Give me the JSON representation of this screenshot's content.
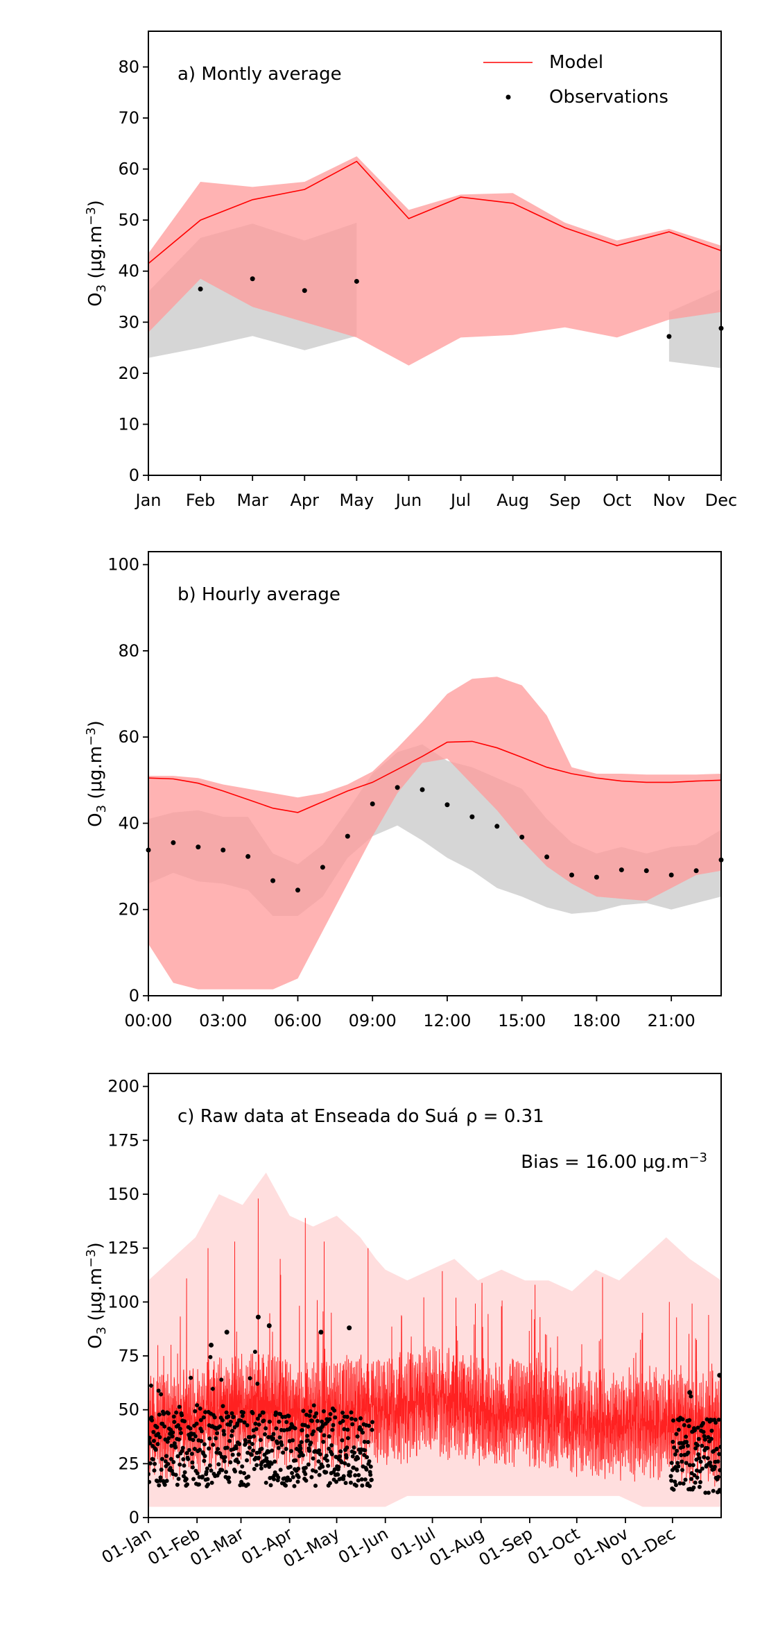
{
  "chart_data": [
    {
      "type": "line",
      "annotation": "a) Montly average",
      "ylabel": "O3 (μg.m−3)",
      "ylim": [
        0,
        87
      ],
      "yticks": [
        0,
        10,
        20,
        30,
        40,
        50,
        60,
        70,
        80
      ],
      "categories": [
        "Jan",
        "Feb",
        "Mar",
        "Apr",
        "May",
        "Jun",
        "Jul",
        "Aug",
        "Sep",
        "Oct",
        "Nov",
        "Dec"
      ],
      "legend": {
        "placement": "upper-right",
        "model_label": "Model",
        "obs_label": "Observations"
      },
      "series": [
        {
          "name": "Model",
          "values": [
            41.5,
            50,
            54,
            56,
            61.5,
            50.3,
            54.5,
            53.3,
            48.5,
            45,
            47.7,
            44
          ]
        },
        {
          "name": "Observations",
          "values": [
            null,
            36.5,
            38.5,
            36.2,
            38,
            null,
            null,
            null,
            null,
            null,
            27.2,
            28.8
          ]
        }
      ],
      "model_band": {
        "upper": [
          43.5,
          57.5,
          56.5,
          57.5,
          62.5,
          52,
          55,
          55.3,
          49.5,
          46,
          48.3,
          45
        ],
        "lower": [
          28,
          38.5,
          33,
          30,
          27,
          21.5,
          27,
          27.5,
          29,
          27,
          30.5,
          32
        ]
      },
      "obs_band": [
        {
          "months": [
            "Jan",
            "Feb",
            "Mar",
            "Apr",
            "May"
          ],
          "upper": [
            36,
            46.5,
            49.3,
            46,
            49.5
          ],
          "lower": [
            23,
            25,
            27.3,
            24.5,
            27.3
          ]
        },
        {
          "months": [
            "Nov",
            "Dec"
          ],
          "upper": [
            32,
            36.5
          ],
          "lower": [
            22.3,
            21
          ]
        }
      ],
      "colors": {
        "model": "#ff0000",
        "model_band": "#ff9999",
        "obs": "#000000",
        "obs_band": "#bbbbbb"
      }
    },
    {
      "type": "line",
      "annotation": "b) Hourly average",
      "ylabel": "O3 (μg.m−3)",
      "ylim": [
        0,
        103
      ],
      "yticks": [
        0,
        20,
        40,
        60,
        80,
        100
      ],
      "xlim": [
        0,
        23
      ],
      "xticks": [
        {
          "hour": 0,
          "label": "00:00"
        },
        {
          "hour": 3,
          "label": "03:00"
        },
        {
          "hour": 6,
          "label": "06:00"
        },
        {
          "hour": 9,
          "label": "09:00"
        },
        {
          "hour": 12,
          "label": "12:00"
        },
        {
          "hour": 15,
          "label": "15:00"
        },
        {
          "hour": 18,
          "label": "18:00"
        },
        {
          "hour": 21,
          "label": "21:00"
        }
      ],
      "hours": [
        0,
        1,
        2,
        3,
        4,
        5,
        6,
        7,
        8,
        9,
        10,
        11,
        12,
        13,
        14,
        15,
        16,
        17,
        18,
        19,
        20,
        21,
        22,
        23
      ],
      "series": [
        {
          "name": "Model",
          "values": [
            50.5,
            50.3,
            49.3,
            47.5,
            45.5,
            43.5,
            42.5,
            45,
            47.5,
            49.5,
            52.5,
            55.5,
            58.8,
            59,
            57.5,
            55.3,
            53,
            51.5,
            50.5,
            49.8,
            49.5,
            49.5,
            49.8,
            50
          ]
        },
        {
          "name": "Observations",
          "values": [
            33.8,
            35.5,
            34.5,
            33.8,
            32.3,
            26.7,
            24.5,
            29.8,
            37,
            44.5,
            48.3,
            47.8,
            44.3,
            41.5,
            39.3,
            36.8,
            32.2,
            28,
            27.5,
            29.2,
            29,
            28,
            29,
            31.5
          ]
        }
      ],
      "model_band": {
        "upper": [
          51,
          51,
          50.5,
          49,
          48,
          47,
          46,
          47,
          49,
          52,
          57.5,
          63.5,
          70,
          73.5,
          74,
          72,
          65,
          53,
          51.5,
          51.5,
          51.3,
          51.3,
          51.3,
          51.5
        ],
        "lower": [
          12,
          3,
          1.5,
          1.5,
          1.5,
          1.5,
          4,
          15,
          26,
          37,
          47,
          54,
          55,
          49,
          43,
          36,
          30,
          26,
          23,
          22.5,
          22,
          25,
          28,
          29
        ]
      },
      "obs_band": {
        "upper": [
          41,
          42.5,
          43,
          41.5,
          41.5,
          33,
          30.5,
          35,
          43,
          51.5,
          56.5,
          58.3,
          54.5,
          53,
          50.5,
          48,
          41,
          35.5,
          33,
          34.5,
          33,
          34.5,
          35,
          38.5
        ],
        "lower": [
          26,
          28.5,
          26.5,
          26,
          24.5,
          18.5,
          18.5,
          23,
          32,
          37,
          39.5,
          36,
          32,
          29,
          25,
          23,
          20.5,
          19,
          19.5,
          21,
          21.5,
          20,
          21.5,
          23
        ]
      },
      "colors": {
        "model": "#ff0000",
        "model_band": "#ff9999",
        "obs": "#000000",
        "obs_band": "#bbbbbb"
      }
    },
    {
      "type": "line",
      "annotation": "c) Raw data at Enseada do Suá",
      "stat_rho": "ρ = 0.31",
      "stat_bias": "Bias = 16.00 μg.m−3",
      "ylabel": "O3 (μg.m−3)",
      "ylim": [
        0,
        206
      ],
      "yticks": [
        0,
        25,
        50,
        75,
        100,
        125,
        150,
        175,
        200
      ],
      "xlim_days": [
        0,
        365
      ],
      "xticks": [
        {
          "day": 0,
          "label": "01-Jan"
        },
        {
          "day": 31,
          "label": "01-Feb"
        },
        {
          "day": 59,
          "label": "01-Mar"
        },
        {
          "day": 90,
          "label": "01-Apr"
        },
        {
          "day": 120,
          "label": "01-May"
        },
        {
          "day": 151,
          "label": "01-Jun"
        },
        {
          "day": 181,
          "label": "01-Jul"
        },
        {
          "day": 212,
          "label": "01-Aug"
        },
        {
          "day": 243,
          "label": "01-Sep"
        },
        {
          "day": 273,
          "label": "01-Oct"
        },
        {
          "day": 304,
          "label": "01-Nov"
        },
        {
          "day": 334,
          "label": "01-Dec"
        }
      ],
      "model_envelope": {
        "days": [
          0,
          15,
          30,
          45,
          60,
          75,
          90,
          105,
          120,
          135,
          145,
          151,
          165,
          180,
          195,
          210,
          225,
          240,
          255,
          270,
          285,
          300,
          315,
          330,
          345,
          365
        ],
        "upper": [
          110,
          120,
          130,
          150,
          145,
          160,
          140,
          135,
          140,
          130,
          120,
          115,
          110,
          115,
          120,
          110,
          115,
          110,
          110,
          105,
          115,
          110,
          120,
          130,
          120,
          110
        ],
        "lower": [
          5,
          5,
          5,
          5,
          5,
          5,
          5,
          5,
          5,
          5,
          5,
          5,
          10,
          10,
          10,
          10,
          10,
          10,
          10,
          10,
          10,
          10,
          5,
          5,
          5,
          5
        ]
      },
      "model_trend": {
        "days": [
          0,
          20,
          40,
          60,
          80,
          100,
          120,
          140,
          160,
          180,
          200,
          220,
          240,
          260,
          280,
          300,
          320,
          340,
          365
        ],
        "values": [
          40,
          45,
          48,
          50,
          52,
          45,
          48,
          50,
          50,
          55,
          52,
          48,
          50,
          45,
          45,
          42,
          45,
          42,
          40
        ]
      },
      "model_peaks": [
        {
          "day": 70,
          "value": 148
        },
        {
          "day": 100,
          "value": 139
        },
        {
          "day": 55,
          "value": 128
        },
        {
          "day": 140,
          "value": 125
        },
        {
          "day": 112,
          "value": 128
        },
        {
          "day": 38,
          "value": 125
        },
        {
          "day": 84,
          "value": 120
        },
        {
          "day": 196,
          "value": 102
        },
        {
          "day": 225,
          "value": 98
        },
        {
          "day": 246,
          "value": 92
        },
        {
          "day": 315,
          "value": 95
        },
        {
          "day": 332,
          "value": 100
        },
        {
          "day": 357,
          "value": 94
        },
        {
          "day": 6,
          "value": 80
        }
      ],
      "obs_periods": [
        {
          "start_day": 0,
          "end_day": 143,
          "typical": 25,
          "peaks": [
            {
              "day": 70,
              "value": 93
            },
            {
              "day": 77,
              "value": 89
            },
            {
              "day": 50,
              "value": 86
            },
            {
              "day": 110,
              "value": 86
            },
            {
              "day": 128,
              "value": 88
            },
            {
              "day": 40,
              "value": 80
            }
          ]
        },
        {
          "start_day": 333,
          "end_day": 365,
          "typical": 22,
          "peaks": [
            {
              "day": 345,
              "value": 58
            },
            {
              "day": 364,
              "value": 66
            }
          ]
        }
      ],
      "colors": {
        "model": "#ff0000",
        "model_envelope": "#ffd6d6",
        "obs": "#000000"
      }
    }
  ]
}
